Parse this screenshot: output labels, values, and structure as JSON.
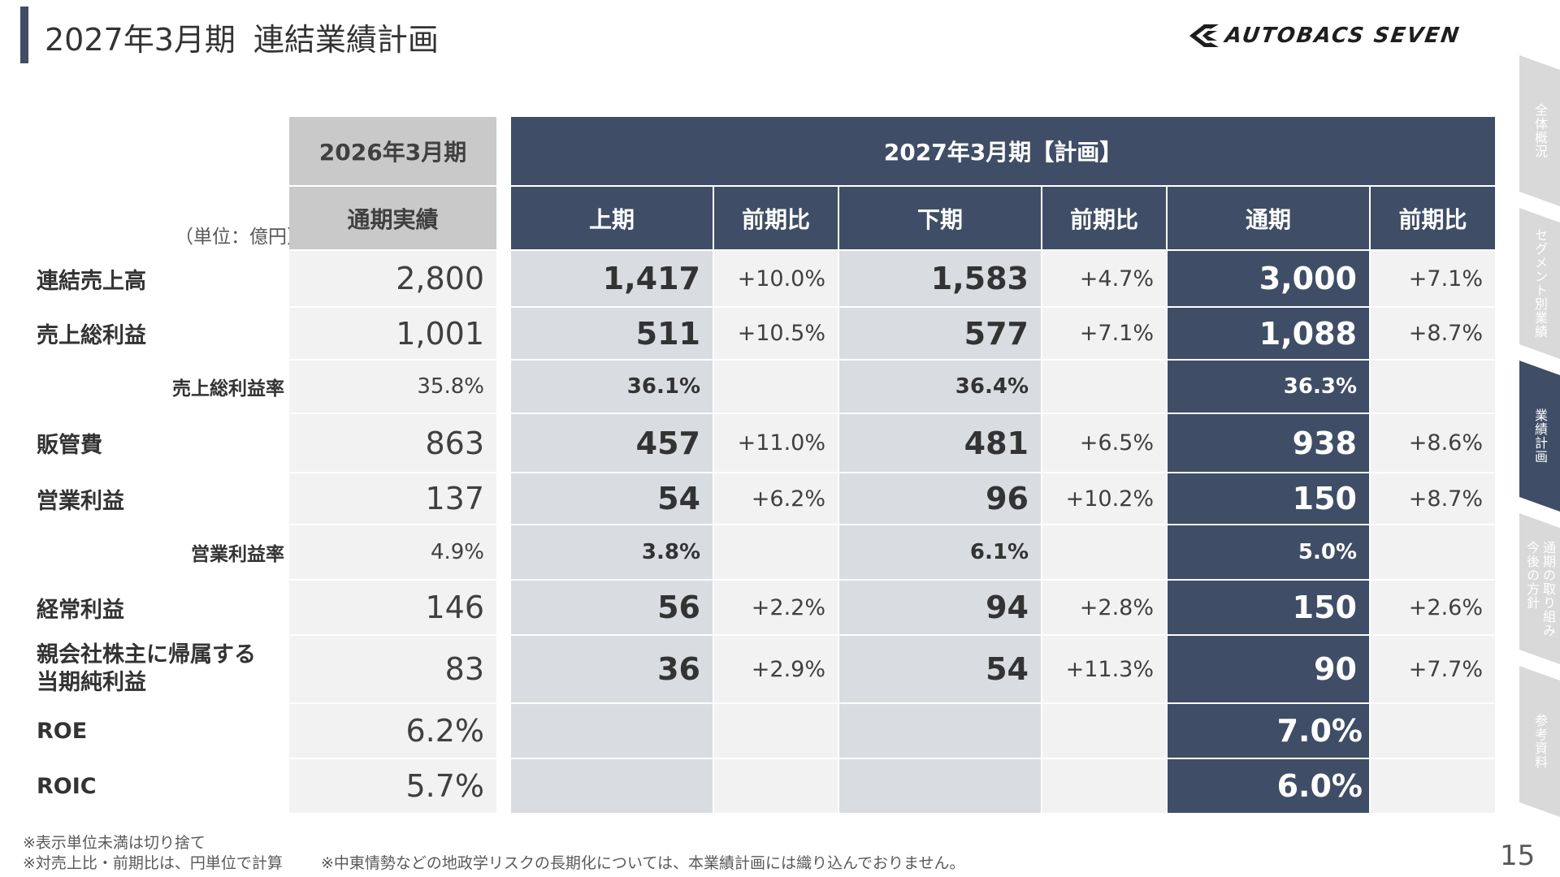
{
  "header": {
    "period": "2027年3月期",
    "title": "連結業績計画",
    "logo_text": "AUTOBACS SEVEN"
  },
  "side_tabs": [
    "全体概況",
    "セグメント別業績",
    "業績計画",
    "通期の取り組み\n今後の方針",
    "参考資料"
  ],
  "active_tab": "業績計画",
  "table": {
    "unit": "（単位：億円）",
    "header_actual_year": "2026年3月期",
    "header_actual_sub": "通期実績",
    "header_plan_year": "2027年3月期【計画】",
    "col_headers": [
      "上期",
      "前期比",
      "下期",
      "前期比",
      "通期",
      "前期比"
    ],
    "rows": [
      {
        "label": "連結売上高",
        "actual": "2,800",
        "h1": "1,417",
        "h1_yoy": "+10.0%",
        "h2": "1,583",
        "h2_yoy": "+4.7%",
        "fy": "3,000",
        "fy_yoy": "+7.1%"
      },
      {
        "label": "売上総利益",
        "actual": "1,001",
        "h1": "511",
        "h1_yoy": "+10.5%",
        "h2": "577",
        "h2_yoy": "+7.1%",
        "fy": "1,088",
        "fy_yoy": "+8.7%"
      },
      {
        "label": "売上総利益率",
        "actual": "35.8%",
        "h1": "36.1%",
        "h1_yoy": "",
        "h2": "36.4%",
        "h2_yoy": "",
        "fy": "36.3%",
        "fy_yoy": ""
      },
      {
        "label": "販管費",
        "actual": "863",
        "h1": "457",
        "h1_yoy": "+11.0%",
        "h2": "481",
        "h2_yoy": "+6.5%",
        "fy": "938",
        "fy_yoy": "+8.6%"
      },
      {
        "label": "営業利益",
        "actual": "137",
        "h1": "54",
        "h1_yoy": "+6.2%",
        "h2": "96",
        "h2_yoy": "+10.2%",
        "fy": "150",
        "fy_yoy": "+8.7%"
      },
      {
        "label": "営業利益率",
        "actual": "4.9%",
        "h1": "3.8%",
        "h1_yoy": "",
        "h2": "6.1%",
        "h2_yoy": "",
        "fy": "5.0%",
        "fy_yoy": ""
      },
      {
        "label": "経常利益",
        "actual": "146",
        "h1": "56",
        "h1_yoy": "+2.2%",
        "h2": "94",
        "h2_yoy": "+2.8%",
        "fy": "150",
        "fy_yoy": "+2.6%"
      },
      {
        "label_line1": "親会社株主に帰属する",
        "label_line2": "当期純利益",
        "actual": "83",
        "h1": "36",
        "h1_yoy": "+2.9%",
        "h2": "54",
        "h2_yoy": "+11.3%",
        "fy": "90",
        "fy_yoy": "+7.7%"
      },
      {
        "label": "ROE",
        "actual": "6.2%",
        "h1": "",
        "h1_yoy": "",
        "h2": "",
        "h2_yoy": "",
        "fy": "7.0%",
        "fy_yoy": ""
      },
      {
        "label": "ROIC",
        "actual": "5.7%",
        "h1": "",
        "h1_yoy": "",
        "h2": "",
        "h2_yoy": "",
        "fy": "6.0%",
        "fy_yoy": ""
      }
    ]
  },
  "footer": {
    "note1": "※表示単位未満は切り捨て",
    "note2": "※対売上比・前期比は、円単位で計算",
    "note3": "※中東情勢などの地政学リスクの長期化については、本業績計画には織り込んでおりません。",
    "page": "15"
  },
  "colors": {
    "navy": "#3f4e66",
    "header_gray": "#c9c9c9",
    "cell_light": "#f2f2f2",
    "cell_mid": "#d9dce1"
  }
}
